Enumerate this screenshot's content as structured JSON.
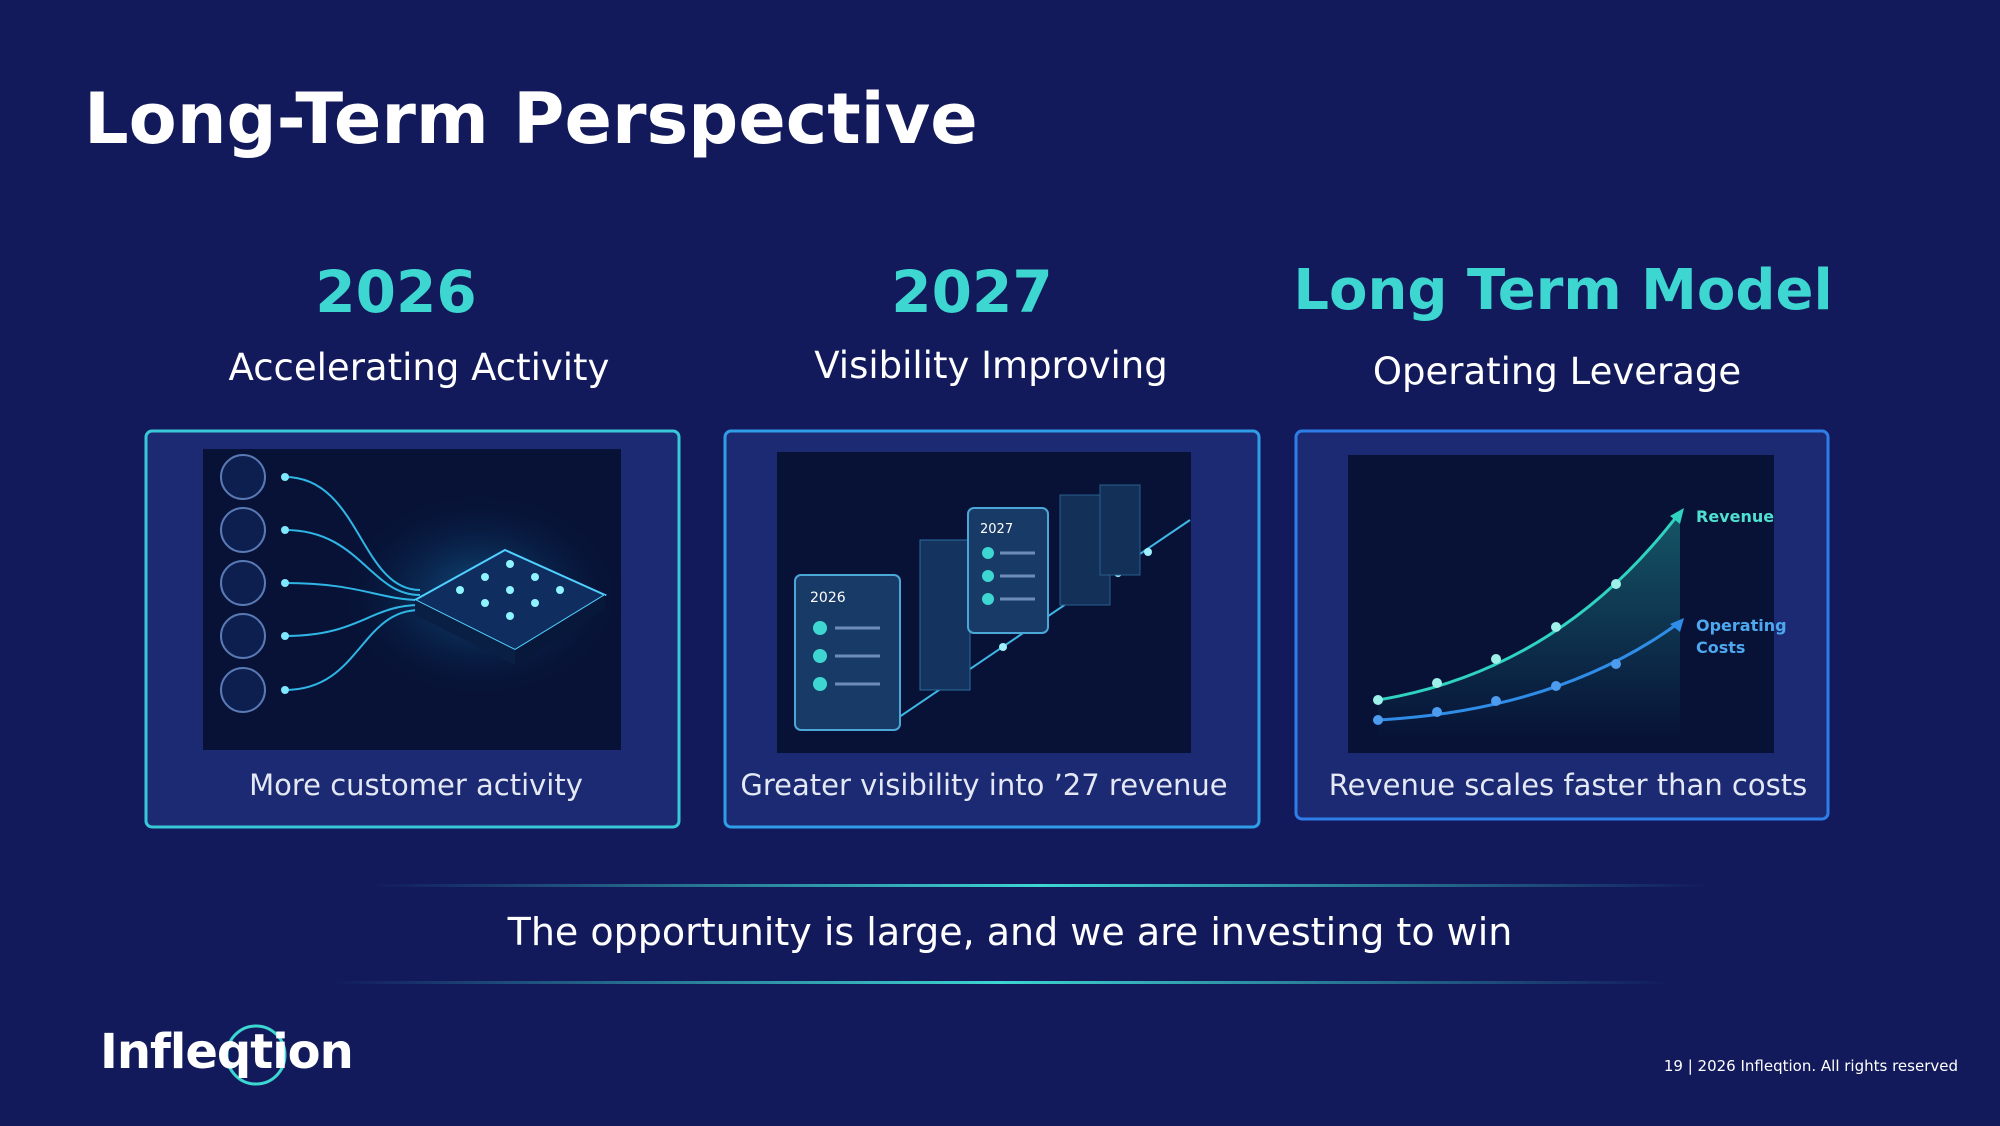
{
  "title": "Long-Term Perspective",
  "columns": [
    {
      "heading": "2026",
      "subheading": "Accelerating Activity",
      "caption": "More customer activity"
    },
    {
      "heading": "2027",
      "subheading": "Visibility Improving",
      "caption": "Greater visibility into ’27 revenue",
      "illustration_labels": [
        "2026",
        "2027"
      ]
    },
    {
      "heading": "Long Term Model",
      "subheading": "Operating Leverage",
      "caption": "Revenue scales faster than costs",
      "illustration_labels": [
        "Revenue",
        "Operating",
        "Costs"
      ]
    }
  ],
  "tagline": "The opportunity is large, and we are investing to win",
  "logo": "Infleqtion",
  "footer": "19  |  2026 Infleqtion. All rights reserved"
}
